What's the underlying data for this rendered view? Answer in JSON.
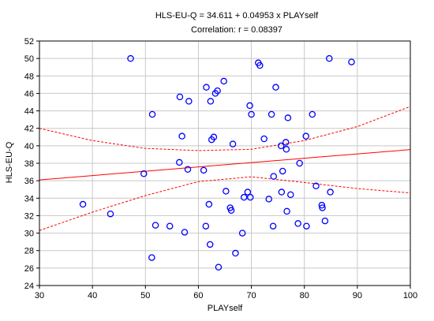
{
  "chart_data": {
    "type": "scatter",
    "title": "HLS-EU-Q = 34.611 + 0.04953 x PLAYself",
    "subtitle": "Correlation: r = 0.08397",
    "xlabel": "PLAYself",
    "ylabel": "HLS-EU-Q",
    "xlim": [
      30,
      100
    ],
    "ylim": [
      24,
      52
    ],
    "xticks": [
      "30",
      "40",
      "50",
      "60",
      "70",
      "80",
      "90",
      "100"
    ],
    "yticks": [
      "24",
      "26",
      "28",
      "30",
      "32",
      "34",
      "36",
      "38",
      "40",
      "42",
      "44",
      "46",
      "48",
      "50",
      "52"
    ],
    "grid": true,
    "regression": {
      "intercept": 34.611,
      "slope": 0.04953
    },
    "confidence_band": {
      "x": [
        30,
        40,
        50,
        60,
        70,
        80,
        90,
        100
      ],
      "upper": [
        42.0,
        40.6,
        39.7,
        39.45,
        39.6,
        40.6,
        42.2,
        44.5
      ],
      "lower": [
        30.3,
        32.4,
        34.3,
        35.9,
        36.45,
        35.8,
        35.1,
        34.6
      ]
    },
    "points": [
      {
        "x": 38.2,
        "y": 33.3
      },
      {
        "x": 43.4,
        "y": 32.2
      },
      {
        "x": 47.2,
        "y": 50.0
      },
      {
        "x": 49.7,
        "y": 36.8
      },
      {
        "x": 51.2,
        "y": 27.2
      },
      {
        "x": 51.3,
        "y": 43.6
      },
      {
        "x": 51.9,
        "y": 30.9
      },
      {
        "x": 54.6,
        "y": 30.8
      },
      {
        "x": 56.4,
        "y": 38.1
      },
      {
        "x": 56.5,
        "y": 45.6
      },
      {
        "x": 56.9,
        "y": 41.1
      },
      {
        "x": 57.4,
        "y": 30.1
      },
      {
        "x": 58.0,
        "y": 37.3
      },
      {
        "x": 58.2,
        "y": 45.1
      },
      {
        "x": 61.0,
        "y": 37.2
      },
      {
        "x": 61.4,
        "y": 30.8
      },
      {
        "x": 61.5,
        "y": 46.7
      },
      {
        "x": 62.0,
        "y": 33.3
      },
      {
        "x": 62.2,
        "y": 28.7
      },
      {
        "x": 62.3,
        "y": 45.1
      },
      {
        "x": 62.5,
        "y": 40.7
      },
      {
        "x": 62.9,
        "y": 41.0
      },
      {
        "x": 63.2,
        "y": 46.0
      },
      {
        "x": 63.6,
        "y": 46.3
      },
      {
        "x": 63.8,
        "y": 26.1
      },
      {
        "x": 64.8,
        "y": 47.4
      },
      {
        "x": 65.2,
        "y": 34.8
      },
      {
        "x": 66.0,
        "y": 32.9
      },
      {
        "x": 66.2,
        "y": 32.6
      },
      {
        "x": 66.5,
        "y": 40.2
      },
      {
        "x": 67.0,
        "y": 27.7
      },
      {
        "x": 68.3,
        "y": 30.0
      },
      {
        "x": 68.6,
        "y": 34.1
      },
      {
        "x": 69.3,
        "y": 34.7
      },
      {
        "x": 69.7,
        "y": 44.6
      },
      {
        "x": 69.8,
        "y": 34.1
      },
      {
        "x": 70.0,
        "y": 43.6
      },
      {
        "x": 71.3,
        "y": 49.5
      },
      {
        "x": 71.6,
        "y": 49.2
      },
      {
        "x": 72.4,
        "y": 40.8
      },
      {
        "x": 73.3,
        "y": 33.9
      },
      {
        "x": 73.8,
        "y": 43.6
      },
      {
        "x": 74.1,
        "y": 30.8
      },
      {
        "x": 74.2,
        "y": 36.5
      },
      {
        "x": 74.6,
        "y": 46.7
      },
      {
        "x": 75.6,
        "y": 40.0
      },
      {
        "x": 75.7,
        "y": 34.7
      },
      {
        "x": 75.9,
        "y": 37.1
      },
      {
        "x": 76.5,
        "y": 40.4
      },
      {
        "x": 76.6,
        "y": 39.6
      },
      {
        "x": 76.7,
        "y": 32.5
      },
      {
        "x": 76.9,
        "y": 43.2
      },
      {
        "x": 77.4,
        "y": 34.4
      },
      {
        "x": 78.8,
        "y": 31.1
      },
      {
        "x": 79.1,
        "y": 38.0
      },
      {
        "x": 80.3,
        "y": 41.1
      },
      {
        "x": 80.4,
        "y": 30.8
      },
      {
        "x": 81.5,
        "y": 43.6
      },
      {
        "x": 82.2,
        "y": 35.4
      },
      {
        "x": 83.3,
        "y": 33.2
      },
      {
        "x": 83.4,
        "y": 32.9
      },
      {
        "x": 83.9,
        "y": 31.4
      },
      {
        "x": 84.7,
        "y": 50.0
      },
      {
        "x": 84.9,
        "y": 34.7
      },
      {
        "x": 88.9,
        "y": 49.6
      }
    ]
  },
  "colors": {
    "points": "#0000ff",
    "regression": "#ff0000",
    "confidence": "#ff0000",
    "grid": "#c8c8c8",
    "frame": "#000000"
  }
}
